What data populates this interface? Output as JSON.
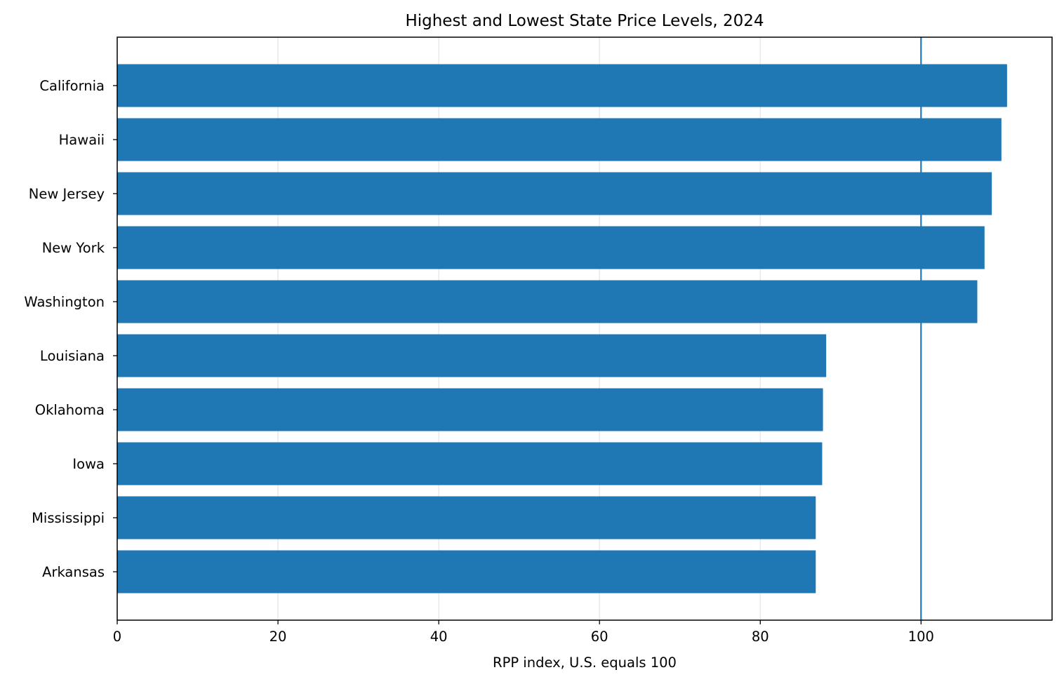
{
  "chart_data": {
    "type": "bar",
    "orientation": "horizontal",
    "title": "Highest and Lowest State Price Levels, 2024",
    "xlabel": "RPP index, U.S. equals 100",
    "ylabel": "",
    "categories": [
      "California",
      "Hawaii",
      "New Jersey",
      "New York",
      "Washington",
      "Louisiana",
      "Oklahoma",
      "Iowa",
      "Mississippi",
      "Arkansas"
    ],
    "values": [
      110.7,
      110.0,
      108.8,
      107.9,
      107.0,
      88.2,
      87.8,
      87.7,
      86.9,
      86.9
    ],
    "xlim": [
      0,
      116.3
    ],
    "xticks": [
      0,
      20,
      40,
      60,
      80,
      100
    ],
    "xtick_labels": [
      "0",
      "20",
      "40",
      "60",
      "80",
      "100"
    ],
    "reference_line": {
      "x": 100,
      "orientation": "vertical"
    },
    "grid": {
      "x": true,
      "y": false
    },
    "colors": {
      "bar": "#1f77b4",
      "reference_line": "#1f77b4",
      "grid": "#e6e6e6",
      "axes": "#000000"
    }
  }
}
